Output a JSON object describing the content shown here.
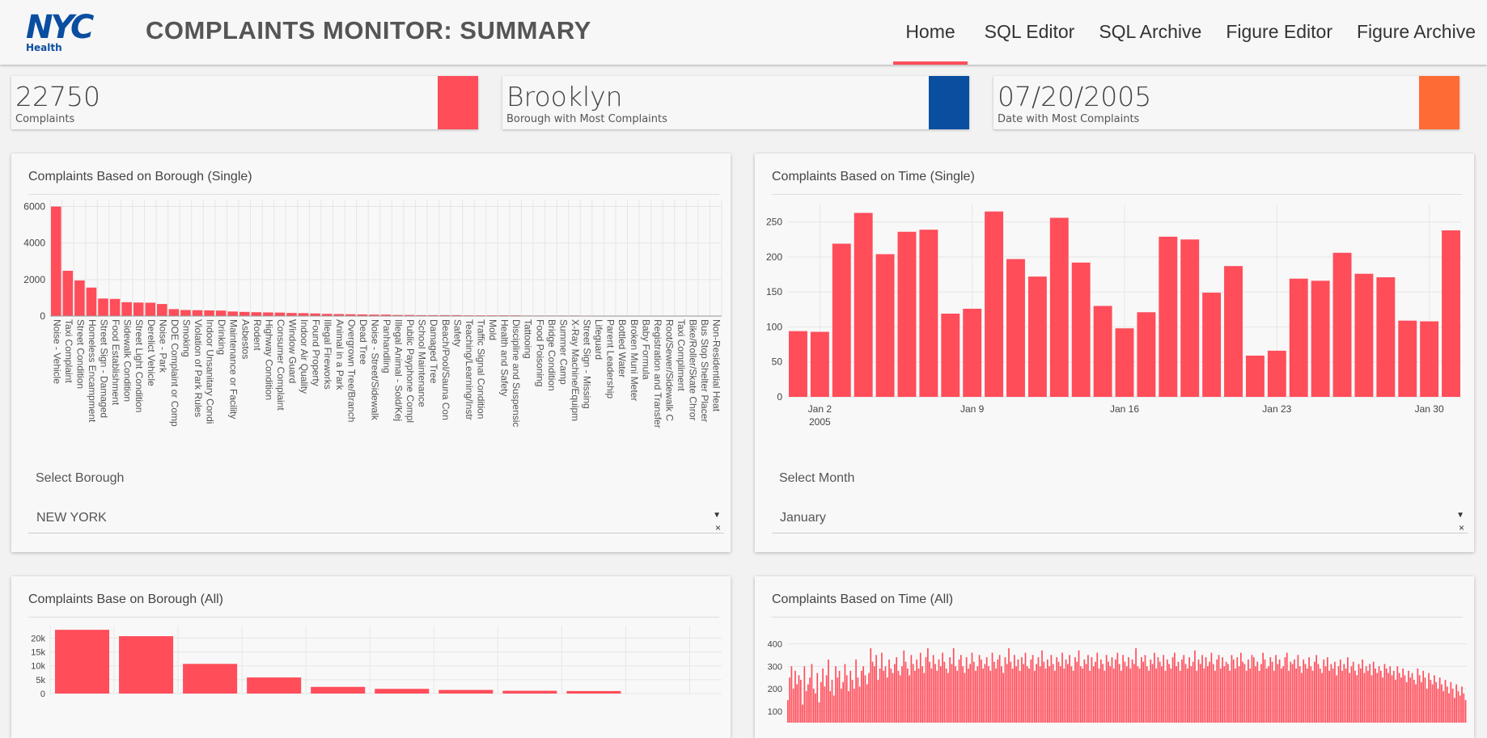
{
  "header": {
    "logo_text": "NYC",
    "logo_sub": "Health",
    "title": "COMPLAINTS MONITOR: SUMMARY",
    "tabs": [
      {
        "label": "Home",
        "active": true
      },
      {
        "label": "SQL Editor",
        "active": false
      },
      {
        "label": "SQL Archive",
        "active": false
      },
      {
        "label": "Figure Editor",
        "active": false
      },
      {
        "label": "Figure Archive",
        "active": false
      }
    ]
  },
  "kpis": [
    {
      "value": "22750",
      "label": "Complaints",
      "color": "#ff4d5a"
    },
    {
      "value": "Brooklyn",
      "label": "Borough with Most Complaints",
      "color": "#0a4ea0"
    },
    {
      "value": "07/20/2005",
      "label": "Date with Most Complaints",
      "color": "#ff6b35"
    }
  ],
  "colors": {
    "bar": "#ff4d5a",
    "grid": "#e6e6e6",
    "accent": "#ff4d5a"
  },
  "cards": {
    "borough_single": {
      "title": "Complaints Based on Borough (Single)",
      "select_label": "Select Borough",
      "select_value": "NEW YORK"
    },
    "time_single": {
      "title": "Complaints Based on Time (Single)",
      "select_label": "Select Month",
      "select_value": "January"
    },
    "borough_all": {
      "title": "Complaints Base on Borough (All)"
    },
    "time_all": {
      "title": "Complaints Based on Time (All)"
    }
  },
  "chart_data": [
    {
      "type": "bar",
      "categories": [
        "Noise - Vehicle",
        "Taxi Complaint",
        "Street Condition",
        "Homeless Encampment",
        "Street Sign - Damaged",
        "Food Establishment",
        "Sidewalk Condition",
        "Street Light Condition",
        "Derelict Vehicle",
        "Noise - Park",
        "DOE Complaint or Comp",
        "Smoking",
        "Violation of Park Rules",
        "Indoor Unsanitary Condi",
        "Drinking",
        "Maintenance or Facility",
        "Asbestos",
        "Rodent",
        "Highway Condition",
        "Consumer Complaint",
        "Window Guard",
        "Indoor Air Quality",
        "Found Property",
        "Illegal Fireworks",
        "Animal in a Park",
        "Overgrown Tree/Branch",
        "Dead Tree",
        "Noise - Street/Sidewalk",
        "Panhandling",
        "Illegal Animal - Sold/Kej",
        "Public Payphone Compl",
        "School Maintenance",
        "Damaged Tree",
        "Beach/Pool/Sauna Con",
        "Safety",
        "Teaching/Learning/Instr",
        "Traffic Signal Condition",
        "Mold",
        "Health and Safety",
        "Discipline and Suspensic",
        "Tattooing",
        "Food Poisoning",
        "Bridge Condition",
        "Summer Camp",
        "X-Ray Machine/Equipm",
        "Street Sign - Missing",
        "Lifeguard",
        "Parent Leadership",
        "Bottled Water",
        "Broken Muni Meter",
        "Baby Formula",
        "Registration and Transfer",
        "Root/Sewer/Sidewalk C",
        "Taxi Compliment",
        "Bike/Roller/Skate Chror",
        "Bus Stop Shelter Placer",
        "Non-Residential Heat"
      ],
      "values": [
        6000,
        2480,
        1950,
        1560,
        960,
        940,
        760,
        740,
        730,
        660,
        380,
        330,
        320,
        310,
        300,
        250,
        230,
        210,
        200,
        190,
        170,
        160,
        140,
        120,
        110,
        100,
        90,
        80,
        80,
        60,
        60,
        50,
        50,
        50,
        50,
        40,
        40,
        40,
        40,
        40,
        30,
        30,
        30,
        30,
        30,
        20,
        20,
        20,
        20,
        20,
        20,
        20,
        20,
        20,
        20,
        20,
        20
      ],
      "yticks": [
        "0",
        "2000",
        "4000",
        "6000"
      ],
      "ylim": [
        0,
        6200
      ]
    },
    {
      "type": "bar",
      "x_ticks": [
        "Jan 2",
        "Jan 9",
        "Jan 16",
        "Jan 23",
        "Jan 30"
      ],
      "x_sub": "2005",
      "values": [
        94,
        93,
        219,
        263,
        204,
        236,
        239,
        119,
        126,
        265,
        197,
        172,
        256,
        192,
        130,
        98,
        121,
        229,
        225,
        149,
        187,
        59,
        66,
        169,
        166,
        206,
        176,
        171,
        109,
        108,
        238
      ],
      "yticks": [
        "0",
        "50",
        "100",
        "150",
        "200",
        "250"
      ],
      "ylim": [
        0,
        275
      ]
    },
    {
      "type": "bar",
      "values": [
        23000,
        20700,
        10700,
        5800,
        2400,
        1700,
        1300,
        1000,
        900
      ],
      "yticks": [
        "0",
        "5k",
        "10k",
        "15k",
        "20k"
      ],
      "ylim": [
        0,
        24500
      ]
    },
    {
      "type": "bar",
      "yticks": [
        "100",
        "200",
        "300",
        "400"
      ],
      "ylim": [
        0,
        480
      ],
      "values": [
        150,
        250,
        300,
        200,
        280,
        220,
        260,
        240,
        130,
        300,
        190,
        220,
        250,
        310,
        200,
        180,
        270,
        140,
        230,
        290,
        210,
        260,
        330,
        190,
        240,
        170,
        300,
        250,
        280,
        200,
        230,
        310,
        260,
        190,
        280,
        240,
        200,
        330,
        250,
        210,
        280,
        300,
        260,
        220,
        270,
        380,
        320,
        300,
        350,
        240,
        290,
        360,
        280,
        300,
        250,
        330,
        290,
        270,
        310,
        340,
        280,
        260,
        300,
        370,
        320,
        290,
        260,
        350,
        310,
        280,
        330,
        290,
        360,
        300,
        270,
        340,
        380,
        320,
        290,
        350,
        310,
        280,
        330,
        300,
        360,
        320,
        290,
        270,
        340,
        310,
        380,
        300,
        280,
        330,
        350,
        300,
        270,
        340,
        290,
        310,
        360,
        320,
        280,
        300,
        350,
        330,
        290,
        310,
        340,
        300,
        280,
        360,
        320,
        290,
        330,
        350,
        300,
        270,
        340,
        310,
        380,
        320,
        290,
        350,
        300,
        330,
        280,
        340,
        310,
        360,
        300,
        290,
        330,
        350,
        280,
        310,
        340,
        300,
        370,
        320,
        290,
        330,
        300,
        350,
        310,
        280,
        340,
        320,
        300,
        360,
        290,
        330,
        310,
        350,
        300,
        280,
        340,
        320,
        370,
        300,
        290,
        330,
        310,
        350,
        280,
        340,
        300,
        320,
        360,
        290,
        330,
        310,
        280,
        350,
        320,
        300,
        340,
        290,
        330,
        360,
        310,
        280,
        350,
        320,
        300,
        340,
        290,
        330,
        310,
        380,
        300,
        290,
        340,
        320,
        350,
        300,
        280,
        330,
        310,
        360,
        290,
        340,
        320,
        300,
        350,
        280,
        330,
        310,
        290,
        340,
        360,
        300,
        320,
        280,
        330,
        350,
        310,
        290,
        340,
        300,
        320,
        370,
        280,
        330,
        310,
        350,
        290,
        340,
        300,
        320,
        360,
        310,
        280,
        330,
        350,
        290,
        340,
        300,
        320,
        310,
        280,
        350,
        330,
        290,
        340,
        300,
        360,
        320,
        310,
        280,
        330,
        290,
        350,
        340,
        300,
        320,
        280,
        310,
        360,
        330,
        290,
        300,
        340,
        320,
        280,
        350,
        310,
        330,
        290,
        300,
        340,
        360,
        280,
        320,
        310,
        330,
        290,
        350,
        300,
        270,
        330,
        310,
        290,
        340,
        300,
        280,
        320,
        350,
        310,
        290,
        270,
        330,
        300,
        340,
        280,
        310,
        290,
        320,
        260,
        300,
        330,
        280,
        310,
        290,
        340,
        270,
        300,
        320,
        280,
        260,
        310,
        290,
        330,
        270,
        300,
        280,
        310,
        260,
        320,
        290,
        270,
        300,
        280,
        250,
        310,
        290,
        270,
        300,
        260,
        280,
        240,
        300,
        270,
        250,
        290,
        260,
        230,
        280,
        250,
        270,
        240,
        220,
        290,
        260,
        230,
        280,
        250,
        200,
        270,
        240,
        220,
        260,
        230,
        200,
        250,
        220,
        190,
        240,
        210,
        180,
        230,
        200,
        160,
        220,
        190,
        170,
        210,
        180,
        150
      ]
    }
  ]
}
